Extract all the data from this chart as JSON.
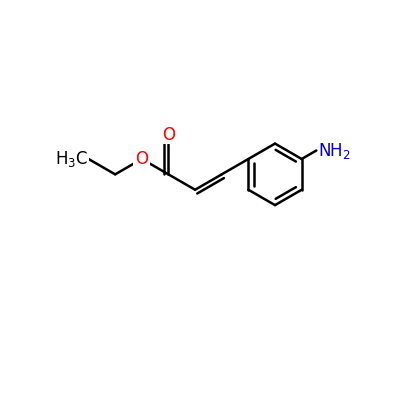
{
  "bg_color": "#ffffff",
  "bond_color": "#000000",
  "o_color": "#ff0000",
  "n_color": "#0000cc",
  "line_width": 1.8,
  "font_size": 12,
  "figsize": [
    4.0,
    4.0
  ],
  "dpi": 100
}
